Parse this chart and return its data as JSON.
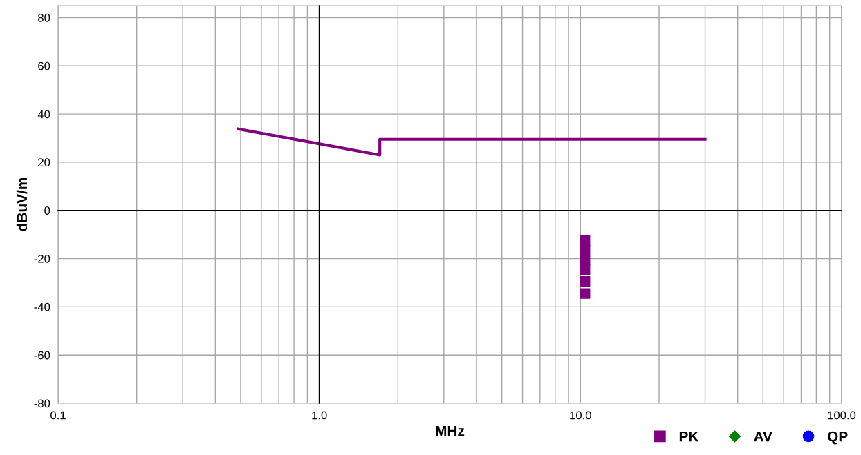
{
  "chart_data": {
    "type": "line",
    "xlabel": "MHz",
    "ylabel": "dBuV/m",
    "log": "x",
    "grid": true,
    "legend": "bottom right",
    "xlim": [
      0.1,
      100
    ],
    "xticks": [
      {
        "value": 0.1,
        "label": "0.1"
      },
      {
        "value": 1,
        "label": "1.0"
      },
      {
        "value": 10,
        "label": "10.0"
      },
      {
        "value": 100,
        "label": "100.0"
      }
    ],
    "ylim": [
      -80,
      85
    ],
    "yticks": [
      -80,
      -60,
      -40,
      -20,
      0,
      20,
      40,
      60,
      80
    ],
    "series": [
      {
        "color": "#800080",
        "x": [
          0.49,
          1.705,
          1.705,
          30
        ],
        "values": [
          33.8,
          23.0,
          29.5,
          29.5
        ],
        "marker": "none",
        "line_style": "solid"
      },
      {
        "type": "scatter",
        "name": "PK",
        "color": "#800080",
        "marker": "square",
        "x": [
          10.4,
          10.4,
          10.4,
          10.4,
          10.4,
          10.4
        ],
        "values": [
          -12.5,
          -16.5,
          -20.5,
          -24.5,
          -29.5,
          -34.5
        ]
      },
      {
        "type": "scatter",
        "name": "AV",
        "color": "#008000",
        "marker": "diamond"
      },
      {
        "type": "scatter",
        "name": "QP",
        "color": "#0000ff",
        "marker": "circle"
      }
    ]
  }
}
